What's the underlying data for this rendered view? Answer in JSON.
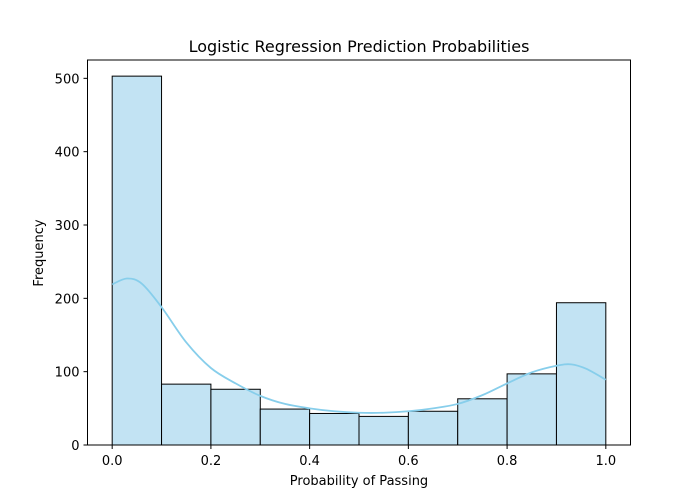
{
  "chart_data": {
    "type": "bar",
    "title": "Logistic Regression Prediction Probabilities",
    "xlabel": "Probability of Passing",
    "ylabel": "Frequency",
    "xlim": [
      -0.05,
      1.05
    ],
    "ylim": [
      0,
      525
    ],
    "xticks": [
      "0.0",
      "0.2",
      "0.4",
      "0.6",
      "0.8",
      "1.0"
    ],
    "yticks": [
      "0",
      "100",
      "200",
      "300",
      "400",
      "500"
    ],
    "bins": [
      {
        "start": 0.0,
        "end": 0.1,
        "value": 503
      },
      {
        "start": 0.1,
        "end": 0.2,
        "value": 83
      },
      {
        "start": 0.2,
        "end": 0.3,
        "value": 76
      },
      {
        "start": 0.3,
        "end": 0.4,
        "value": 49
      },
      {
        "start": 0.4,
        "end": 0.5,
        "value": 43
      },
      {
        "start": 0.5,
        "end": 0.6,
        "value": 39
      },
      {
        "start": 0.6,
        "end": 0.7,
        "value": 46
      },
      {
        "start": 0.7,
        "end": 0.8,
        "value": 63
      },
      {
        "start": 0.8,
        "end": 0.9,
        "value": 97
      },
      {
        "start": 0.9,
        "end": 1.0,
        "value": 194
      }
    ],
    "kde": {
      "x": [
        0.0,
        0.03,
        0.06,
        0.1,
        0.15,
        0.2,
        0.25,
        0.3,
        0.35,
        0.4,
        0.45,
        0.5,
        0.55,
        0.6,
        0.65,
        0.7,
        0.75,
        0.8,
        0.85,
        0.9,
        0.93,
        0.96,
        1.0
      ],
      "y": [
        219,
        227,
        220,
        188,
        140,
        105,
        84,
        67,
        56,
        50,
        46,
        44,
        44,
        46,
        50,
        56,
        68,
        84,
        99,
        108,
        110,
        104,
        89
      ]
    },
    "colors": {
      "bar_fill": "#c2e3f3",
      "bar_edge": "#000000",
      "kde_line": "#87ceeb"
    },
    "grid": false,
    "legend": "none"
  }
}
